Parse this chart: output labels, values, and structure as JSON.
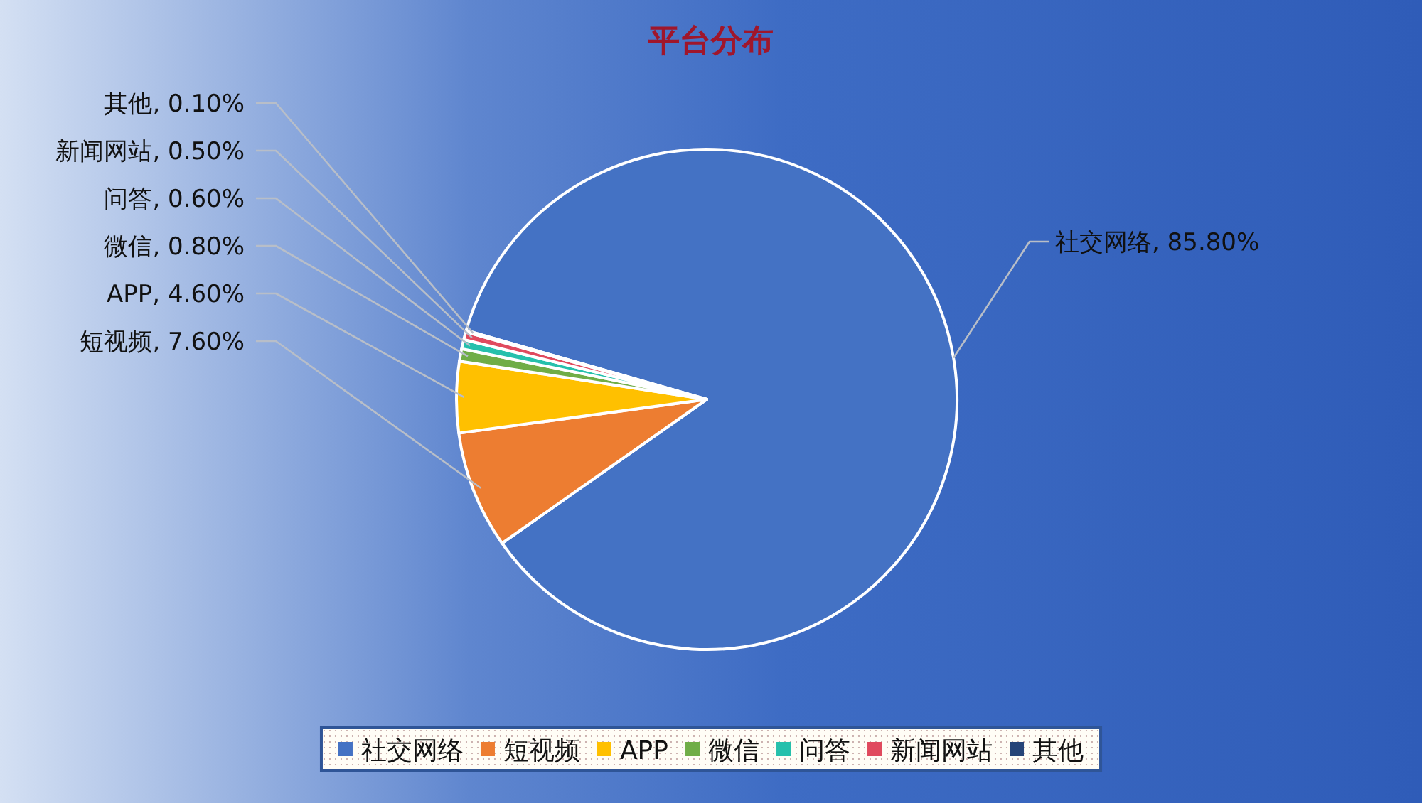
{
  "chart_data": {
    "type": "pie",
    "title": "平台分布",
    "categories": [
      "社交网络",
      "短视频",
      "APP",
      "微信",
      "问答",
      "新闻网站",
      "其他"
    ],
    "values": [
      85.8,
      7.6,
      4.6,
      0.8,
      0.6,
      0.5,
      0.1
    ],
    "value_labels": [
      "社交网络, 85.80%",
      "短视频, 7.60%",
      "APP, 4.60%",
      "微信, 0.80%",
      "问答, 0.60%",
      "新闻网站, 0.50%",
      "其他, 0.10%"
    ],
    "colors": [
      "#4472c4",
      "#ed7d31",
      "#ffc000",
      "#70ad47",
      "#26c0ac",
      "#e04a5e",
      "#264478"
    ],
    "legend": "bottom"
  }
}
